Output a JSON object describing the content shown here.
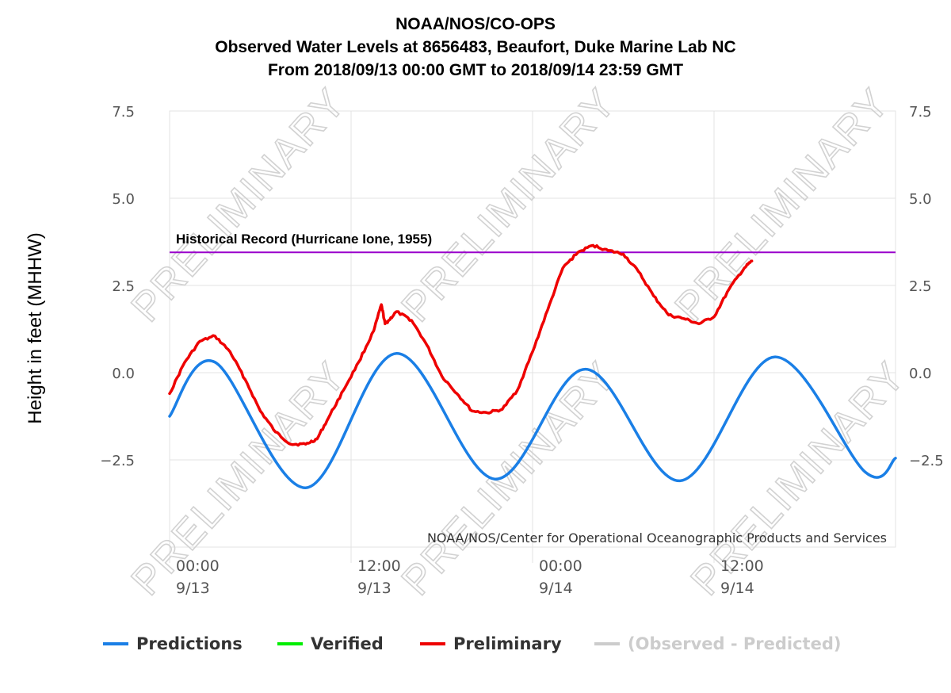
{
  "chart_data": {
    "type": "line",
    "title_lines": [
      "NOAA/NOS/CO-OPS",
      "Observed Water Levels at 8656483, Beaufort, Duke Marine Lab NC",
      "From 2018/09/13 00:00 GMT to 2018/09/14 23:59 GMT"
    ],
    "ylabel": "Height in feet (MHHW)",
    "ylim": [
      -5,
      7.5
    ],
    "yticks": [
      -2.5,
      0,
      2.5,
      5,
      7.5
    ],
    "ytick_labels": [
      "−2.5",
      "0.0",
      "2.5",
      "5.0",
      "7.5"
    ],
    "xlim": [
      "2018-09-13 00:00",
      "2018-09-15 00:00"
    ],
    "xticks": [
      {
        "x": "2018-09-13 00:00",
        "time": "00:00",
        "date": "9/13"
      },
      {
        "x": "2018-09-13 12:00",
        "time": "12:00",
        "date": "9/13"
      },
      {
        "x": "2018-09-14 00:00",
        "time": "00:00",
        "date": "9/14"
      },
      {
        "x": "2018-09-14 12:00",
        "time": "12:00",
        "date": "9/14"
      }
    ],
    "grid": true,
    "reference_line": {
      "y": 3.45,
      "label": "Historical Record (Hurricane Ione, 1955)",
      "color": "#9900cc"
    },
    "watermark": "PRELIMINARY",
    "credit": "NOAA/NOS/Center for Operational Oceanographic Products and Services",
    "legend_position": "bottom",
    "series": [
      {
        "name": "Predictions",
        "color": "#1a7fe6",
        "x": [
          "2018-09-13 00:00",
          "2018-09-13 03:00",
          "2018-09-13 09:00",
          "2018-09-13 15:00",
          "2018-09-13 21:30",
          "2018-09-14 03:30",
          "2018-09-14 09:45",
          "2018-09-14 16:00",
          "2018-09-14 22:00",
          "2018-09-15 00:00"
        ],
        "y": [
          -1.25,
          0.3,
          -3.3,
          0.55,
          -3.05,
          0.1,
          -3.1,
          0.45,
          -2.85,
          -2.45
        ]
      },
      {
        "name": "Verified",
        "color": "#00ee00",
        "x": [],
        "y": []
      },
      {
        "name": "Preliminary",
        "color": "#ee0000",
        "x": [
          "2018-09-13 00:00",
          "2018-09-13 01:00",
          "2018-09-13 02:00",
          "2018-09-13 03:00",
          "2018-09-13 04:00",
          "2018-09-13 05:00",
          "2018-09-13 06:00",
          "2018-09-13 07:00",
          "2018-09-13 08:00",
          "2018-09-13 09:00",
          "2018-09-13 09:45",
          "2018-09-13 10:30",
          "2018-09-13 11:30",
          "2018-09-13 12:30",
          "2018-09-13 13:30",
          "2018-09-13 14:00",
          "2018-09-13 14:15",
          "2018-09-13 14:30",
          "2018-09-13 15:00",
          "2018-09-13 16:00",
          "2018-09-13 17:00",
          "2018-09-13 18:00",
          "2018-09-13 19:00",
          "2018-09-13 20:00",
          "2018-09-13 21:00",
          "2018-09-13 22:00",
          "2018-09-13 23:00",
          "2018-09-14 00:00",
          "2018-09-14 01:00",
          "2018-09-14 02:00",
          "2018-09-14 03:00",
          "2018-09-14 04:00",
          "2018-09-14 05:00",
          "2018-09-14 06:00",
          "2018-09-14 07:00",
          "2018-09-14 08:00",
          "2018-09-14 09:00",
          "2018-09-14 10:00",
          "2018-09-14 11:00",
          "2018-09-14 12:00",
          "2018-09-14 13:00",
          "2018-09-14 14:00",
          "2018-09-14 14:30"
        ],
        "y": [
          -0.6,
          0.3,
          0.9,
          1.05,
          0.6,
          -0.2,
          -1.1,
          -1.7,
          -2.05,
          -2.05,
          -1.9,
          -1.3,
          -0.5,
          0.3,
          1.2,
          1.95,
          1.4,
          1.5,
          1.75,
          1.5,
          0.8,
          -0.1,
          -0.6,
          -1.1,
          -1.15,
          -1.05,
          -0.5,
          0.6,
          1.8,
          3.0,
          3.45,
          3.65,
          3.5,
          3.4,
          2.9,
          2.2,
          1.65,
          1.55,
          1.4,
          1.6,
          2.4,
          3.0,
          3.2
        ]
      },
      {
        "name": "(Observed - Predicted)",
        "color": "#cccccc",
        "x": [],
        "y": []
      }
    ]
  }
}
